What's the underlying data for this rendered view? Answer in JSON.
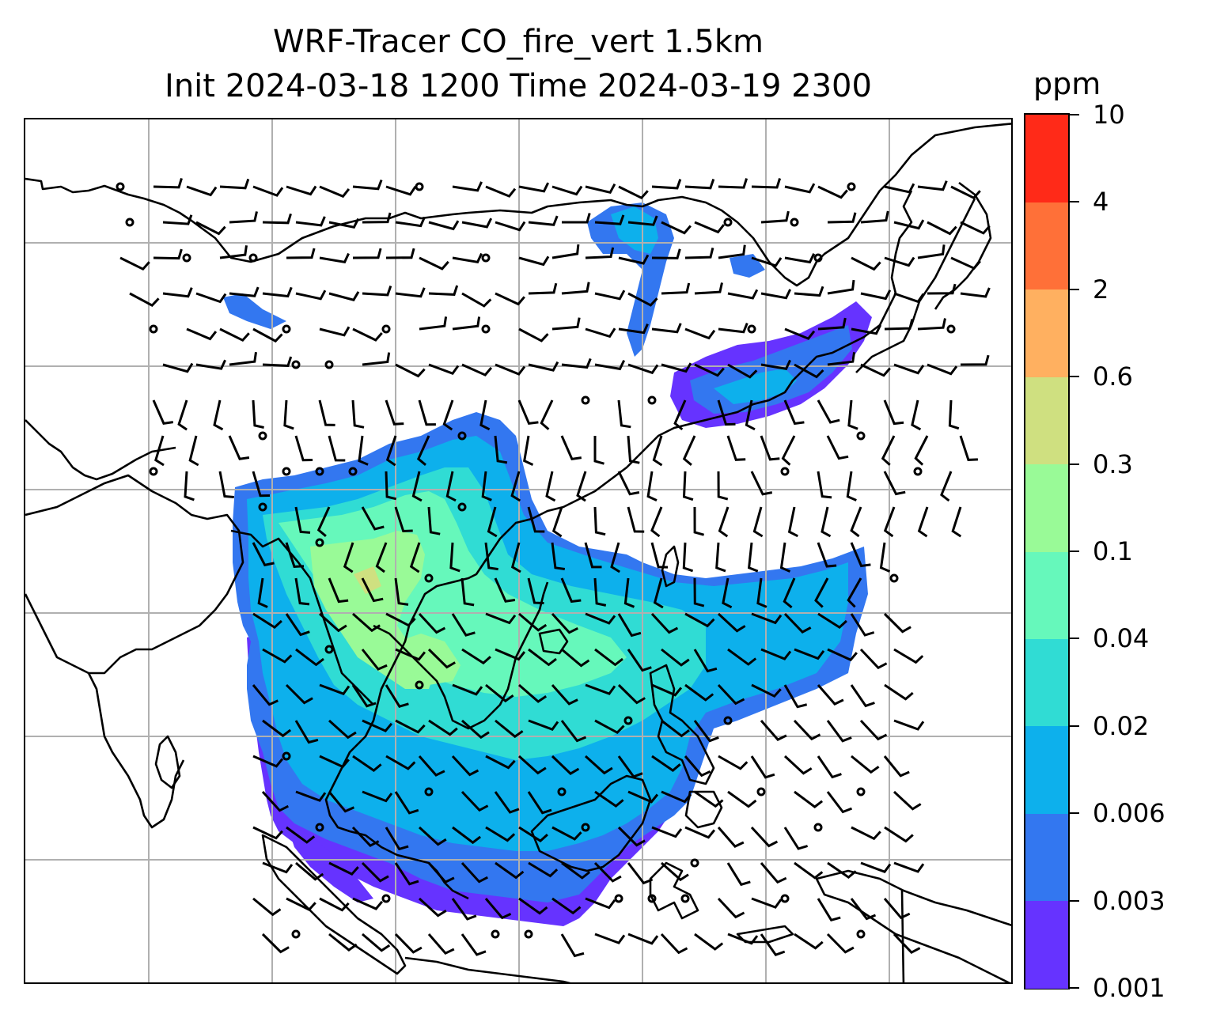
{
  "chart_data": {
    "type": "heatmap",
    "title": "WRF-Tracer CO_fire_vert 1.5km",
    "subtitle": "Init 2024-03-18 1200 Time 2024-03-19 2300",
    "colorbar": {
      "unit": "ppm",
      "levels": [
        "0.001",
        "0.003",
        "0.006",
        "0.02",
        "0.04",
        "0.1",
        "0.3",
        "0.6",
        "2",
        "4",
        "10"
      ],
      "colors": [
        "#6633ff",
        "#3377f0",
        "#0db0ec",
        "#30dcd4",
        "#66f8bb",
        "#99fa97",
        "#cfe080",
        "#ffb060",
        "#ff7038",
        "#ff2a18"
      ]
    },
    "map": {
      "grid": true,
      "coastlines": true,
      "wind_barbs": true
    }
  }
}
